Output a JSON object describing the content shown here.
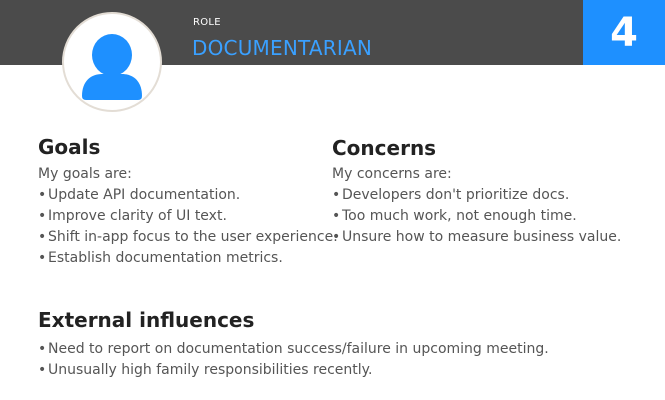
{
  "header": {
    "role_label": "ROLE",
    "role_title": "DOCUMENTARIAN",
    "number": "4",
    "band_color": "#4b4b4b",
    "number_box_color": "#1e90ff",
    "title_color": "#3aa0ff"
  },
  "avatar": {
    "icon": "user-icon",
    "color": "#1e90ff"
  },
  "goals": {
    "title": "Goals",
    "intro": "My goals are:",
    "items": [
      "Update API documentation.",
      "Improve clarity of UI text.",
      "Shift in-app focus to the user experience.",
      "Establish documentation metrics."
    ]
  },
  "concerns": {
    "title": "Concerns",
    "intro": "My concerns are:",
    "items": [
      "Developers don't prioritize docs.",
      "Too much work, not enough time.",
      "Unsure how to measure business value."
    ]
  },
  "external": {
    "title": "External influences",
    "items": [
      "Need to report on documentation success/failure in upcoming meeting.",
      "Unusually high family responsibilities recently."
    ]
  }
}
